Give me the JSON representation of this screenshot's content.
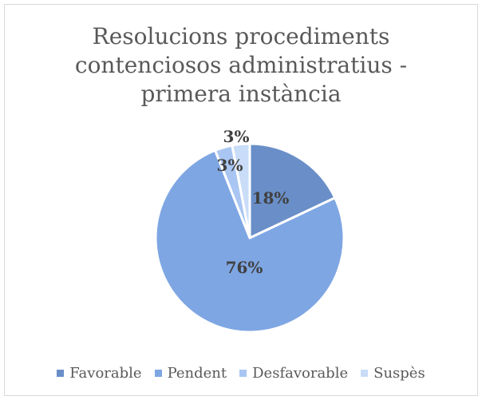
{
  "chart_data": {
    "type": "pie",
    "title": "Resolucions procediments\ncontenciosos administratius -\nprimera instància",
    "categories": [
      "Favorable",
      "Pendent",
      "Desfavorable",
      "Suspès"
    ],
    "values": [
      18,
      76,
      3,
      3
    ],
    "data_labels": [
      "18%",
      "76%",
      "3%",
      "3%"
    ],
    "colors": [
      "#6a8fc8",
      "#7ea6e3",
      "#a9c6f2",
      "#c9dcf8"
    ],
    "legend_position": "bottom"
  }
}
